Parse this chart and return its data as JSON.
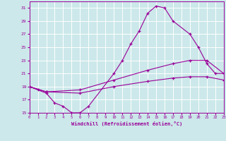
{
  "xlabel": "Windchill (Refroidissement éolien,°C)",
  "bg_color": "#cce8ea",
  "grid_color": "#b0d4d8",
  "line_color": "#990099",
  "xlim": [
    0,
    23
  ],
  "ylim": [
    15,
    32
  ],
  "yticks": [
    15,
    17,
    19,
    21,
    23,
    25,
    27,
    29,
    31
  ],
  "xticks": [
    0,
    1,
    2,
    3,
    4,
    5,
    6,
    7,
    8,
    9,
    10,
    11,
    12,
    13,
    14,
    15,
    16,
    17,
    18,
    19,
    20,
    21,
    22,
    23
  ],
  "line1_x": [
    0,
    1,
    2,
    3,
    4,
    5,
    6,
    7,
    10,
    11,
    12,
    13,
    14,
    15,
    16,
    17,
    19,
    20,
    21,
    22,
    23
  ],
  "line1_y": [
    19,
    18.5,
    18.0,
    16.5,
    16.0,
    15.0,
    15.0,
    16.0,
    21.0,
    23.0,
    25.5,
    27.5,
    30.2,
    31.3,
    31.0,
    29.0,
    27.0,
    25.0,
    22.5,
    21.0,
    21.0
  ],
  "line2_x": [
    0,
    2,
    6,
    10,
    14,
    17,
    19,
    21,
    23
  ],
  "line2_y": [
    19,
    18.2,
    18.5,
    20.0,
    21.5,
    22.5,
    23.0,
    23.0,
    21.0
  ],
  "line3_x": [
    0,
    2,
    6,
    10,
    14,
    17,
    19,
    21,
    23
  ],
  "line3_y": [
    19,
    18.2,
    18.0,
    19.0,
    19.8,
    20.3,
    20.5,
    20.5,
    20.0
  ]
}
